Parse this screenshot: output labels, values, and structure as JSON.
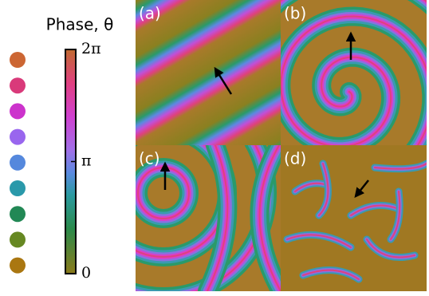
{
  "title": "Phase, θ",
  "colorbar": {
    "clim": [
      0,
      6.283
    ],
    "ticks": [
      0,
      {
        "value": 3.1416,
        "label": "π"
      },
      {
        "value": 6.283,
        "label": "2π"
      }
    ]
  },
  "dot_colors": [
    "#cc6633",
    "#d93a7a",
    "#cc33cc",
    "#9966ee",
    "#5588dd",
    "#2a99aa",
    "#228855",
    "#668822",
    "#aa7711"
  ],
  "panels": [
    "(a)",
    "(b)",
    "(c)",
    "(d)"
  ]
}
